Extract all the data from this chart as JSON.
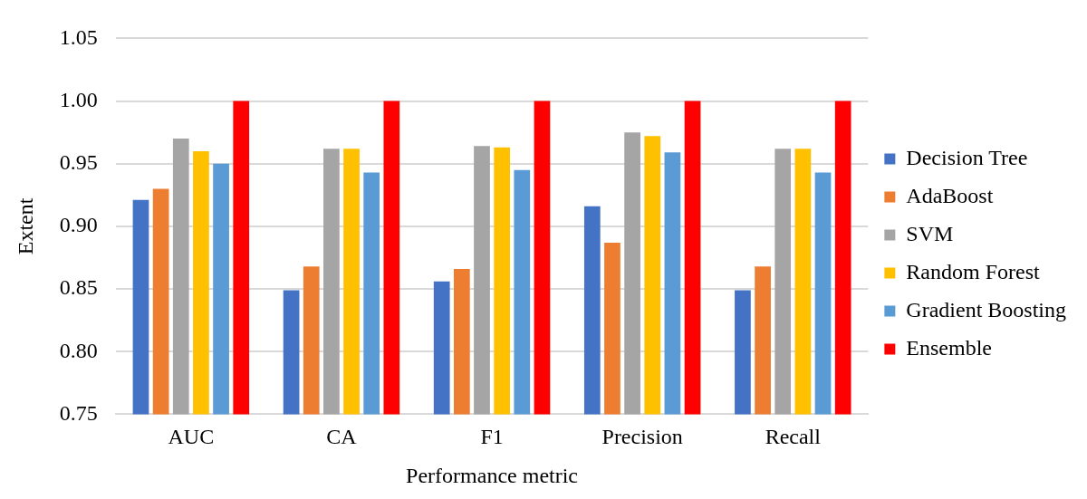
{
  "chart_data": {
    "type": "bar",
    "xlabel": "Performance metric",
    "ylabel": "Extent",
    "categories": [
      "AUC",
      "CA",
      "F1",
      "Precision",
      "Recall"
    ],
    "series": [
      {
        "name": "Decision Tree",
        "color": "#4472c4",
        "values": [
          0.921,
          0.849,
          0.856,
          0.916,
          0.849
        ]
      },
      {
        "name": "AdaBoost",
        "color": "#ed7d31",
        "values": [
          0.93,
          0.868,
          0.866,
          0.887,
          0.868
        ]
      },
      {
        "name": "SVM",
        "color": "#a5a5a5",
        "values": [
          0.97,
          0.962,
          0.964,
          0.975,
          0.962
        ]
      },
      {
        "name": "Random Forest",
        "color": "#ffc000",
        "values": [
          0.96,
          0.962,
          0.963,
          0.972,
          0.962
        ]
      },
      {
        "name": "Gradient Boosting",
        "color": "#5b9bd5",
        "values": [
          0.95,
          0.943,
          0.945,
          0.959,
          0.943
        ]
      },
      {
        "name": "Ensemble",
        "color": "#ff0000",
        "values": [
          1.0,
          1.0,
          1.0,
          1.0,
          1.0
        ]
      }
    ],
    "ylim": [
      0.75,
      1.05
    ],
    "yticks": [
      {
        "value": 0.75,
        "label": "0.75"
      },
      {
        "value": 0.8,
        "label": "0.80"
      },
      {
        "value": 0.85,
        "label": "0.85"
      },
      {
        "value": 0.9,
        "label": "0.90"
      },
      {
        "value": 0.95,
        "label": "0.95"
      },
      {
        "value": 1.0,
        "label": "1.00"
      },
      {
        "value": 1.05,
        "label": "1.05"
      }
    ],
    "grid": "y",
    "legend": "right"
  }
}
